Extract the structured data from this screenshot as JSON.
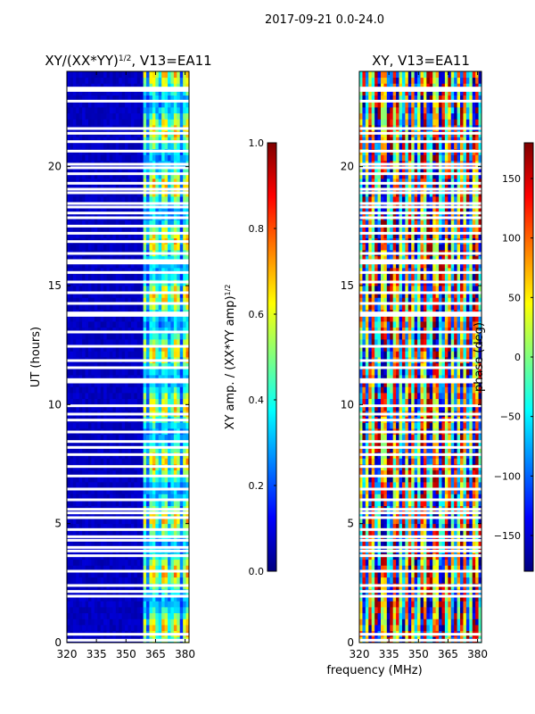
{
  "figure": {
    "suptitle": "2017-09-21 0.0-24.0",
    "xlabel_shared": "frequency (MHz)"
  },
  "colors": {
    "background": "#ffffff",
    "flagged_rows": "#ffffff",
    "axes_frame": "#000000",
    "jet_low": "#00007f",
    "jet_high": "#7f0000"
  },
  "chart_data": [
    {
      "type": "heatmap",
      "title_main": "XY/(XX*YY)",
      "title_sup": "1/2",
      "title_rest": ", V13=EA11",
      "xlabel": "",
      "ylabel": "UT (hours)",
      "x_range": [
        320,
        382
      ],
      "y_range": [
        0,
        24
      ],
      "x_ticks": [
        320,
        335,
        350,
        365,
        380
      ],
      "y_ticks": [
        0,
        5,
        10,
        15,
        20
      ],
      "colorbar": {
        "label_main": "XY amp. / (XX*YY amp)",
        "label_sup": "1/2",
        "range": [
          0.0,
          1.0
        ],
        "ticks": [
          "0.0",
          "0.2",
          "0.4",
          "0.6",
          "0.8",
          "1.0"
        ],
        "tick_values": [
          0.0,
          0.2,
          0.4,
          0.6,
          0.8,
          1.0
        ]
      },
      "description": "Low amplitude (~0.05) for 320-358 MHz; elevated amplitude (0.3-0.7) in bands near 361-382 MHz"
    },
    {
      "type": "heatmap",
      "title_main": "XY, V13=EA11",
      "xlabel": "frequency (MHz)",
      "ylabel": "",
      "x_range": [
        320,
        382
      ],
      "y_range": [
        0,
        24
      ],
      "x_ticks": [
        320,
        335,
        350,
        365,
        380
      ],
      "y_ticks": [
        0,
        5,
        10,
        15,
        20
      ],
      "colorbar": {
        "label_main": "phase (deg)",
        "range": [
          -180,
          180
        ],
        "ticks": [
          "−150",
          "−100",
          "−50",
          "0",
          "50",
          "100",
          "150"
        ],
        "tick_values": [
          -150,
          -100,
          -50,
          0,
          50,
          100,
          150
        ]
      },
      "description": "Phase wrapping across -180 to 180 deg with vertical striping versus frequency"
    }
  ],
  "flagged_hours": [
    0.1,
    0.35,
    1.95,
    2.15,
    2.4,
    3.0,
    3.65,
    3.85,
    4.0,
    4.3,
    4.45,
    4.75,
    5.25,
    5.45,
    5.6,
    6.0,
    6.45,
    7.0,
    7.4,
    7.9,
    8.2,
    8.45,
    8.85,
    9.35,
    9.6,
    9.95,
    10.95,
    11.05,
    11.55,
    11.85,
    12.45,
    13.05,
    13.75,
    13.85,
    14.25,
    14.7,
    15.15,
    15.55,
    15.95,
    16.05,
    16.35,
    16.85,
    17.2,
    17.5,
    17.85,
    18.05,
    18.3,
    18.45,
    18.9,
    19.05,
    19.3,
    19.7,
    19.95,
    20.1,
    20.65,
    21.05,
    21.4,
    21.6,
    22.75,
    23.2,
    23.3
  ]
}
